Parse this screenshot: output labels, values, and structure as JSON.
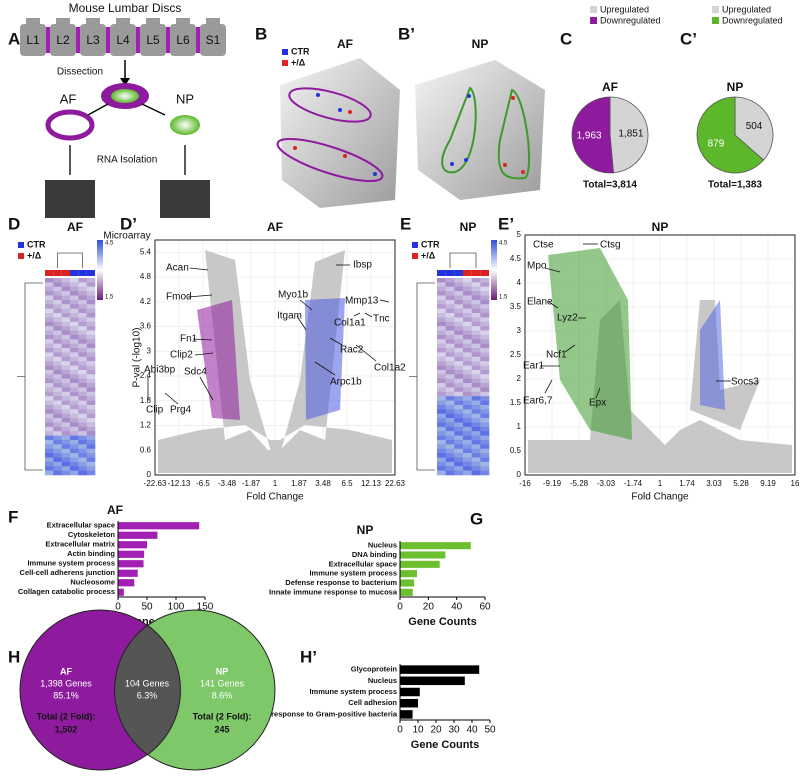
{
  "panel_labels": [
    "A",
    "B",
    "B’",
    "C",
    "C’",
    "D",
    "D’",
    "E",
    "E’",
    "F",
    "G",
    "H",
    "H’"
  ],
  "panel_a": {
    "title": "Mouse Lumbar Discs",
    "discs": [
      "L1",
      "L2",
      "L3",
      "L4",
      "L5",
      "L6",
      "S1"
    ],
    "steps": [
      "Dissection",
      "RNA Isolation"
    ],
    "tissues": [
      "AF",
      "NP"
    ],
    "array": "Microarray"
  },
  "legend_groups": [
    "CTR",
    "+/Δ"
  ],
  "pca": [
    {
      "title": "AF"
    },
    {
      "title": "NP"
    }
  ],
  "heatmaps": [
    {
      "title": "AF",
      "scale": [
        4.5,
        1.5
      ]
    },
    {
      "title": "NP",
      "scale": [
        4.5,
        1.5
      ]
    }
  ],
  "chart_data": [
    {
      "type": "pie",
      "title": "AF",
      "categories": [
        "Upregulated",
        "Downregulated"
      ],
      "values": [
        1851,
        1963
      ],
      "value_labels": [
        "1,851",
        "1,963"
      ],
      "colors": [
        "#d4d4d4",
        "#8e1b9e"
      ],
      "total_label": "Total=3,814"
    },
    {
      "type": "pie",
      "title": "NP",
      "categories": [
        "Upregulated",
        "Downregulated"
      ],
      "values": [
        504,
        879
      ],
      "value_labels": [
        "504",
        "879"
      ],
      "colors": [
        "#d4d4d4",
        "#5cb82a"
      ],
      "total_label": "Total=1,383"
    },
    {
      "type": "volcano",
      "title": "AF",
      "xlabel": "Fold Change",
      "ylabel": "P-val (-log10)",
      "xticks": [
        -22.63,
        -12.13,
        -6.5,
        -3.48,
        -1.87,
        1,
        1.87,
        3.48,
        6.5,
        12.13,
        22.63
      ],
      "ylim": [
        0,
        5.7
      ],
      "yticks": [
        0,
        0.6,
        1.2,
        1.8,
        2.4,
        3,
        3.6,
        4.2,
        4.8,
        5.4
      ],
      "colors": [
        "#8e1b9e",
        "#4a5be0"
      ],
      "annotations": [
        "Acan",
        "Fmod",
        "Fn1",
        "Clip2",
        "Sdc4",
        "Abi3bp",
        "Clip",
        "Prg4",
        "Ibsp",
        "Myo1b",
        "Itgam",
        "Mmp13",
        "Col1a1",
        "Tnc",
        "Rac2",
        "Col1a2",
        "Arpc1b"
      ]
    },
    {
      "type": "volcano",
      "title": "NP",
      "xlabel": "Fold Change",
      "ylabel": null,
      "xticks": [
        -16,
        -9.19,
        -5.28,
        -3.03,
        -1.74,
        1,
        1.74,
        3.03,
        5.28,
        9.19,
        16
      ],
      "ylim": [
        0,
        5
      ],
      "yticks": [
        0,
        0.5,
        1,
        1.5,
        2,
        2.5,
        3,
        3.5,
        4,
        4.5,
        5
      ],
      "colors": [
        "#3d9a2a",
        "#4a5be0"
      ],
      "annotations": [
        "Ctse",
        "Ctsg",
        "Mpo",
        "Elane",
        "Lyz2",
        "Ncf1",
        "Ear1",
        "Ear6,7",
        "Epx",
        "Socs3"
      ]
    },
    {
      "type": "hbar",
      "title": "AF",
      "categories": [
        "Extracellular space",
        "Cytoskeleton",
        "Extracellular matrix",
        "Actin binding",
        "Immune system process",
        "Cell-cell adherens junction",
        "Nucleosome",
        "Collagen catabolic process"
      ],
      "values": [
        140,
        68,
        50,
        45,
        44,
        34,
        28,
        10
      ],
      "color": "#a21fb3",
      "xlabel": "Gene Counts",
      "xlim": [
        0,
        150
      ],
      "xticks": [
        0,
        50,
        100,
        150
      ]
    },
    {
      "type": "hbar",
      "title": "NP",
      "categories": [
        "Nucleus",
        "DNA binding",
        "Extracellular space",
        "Immune system process",
        "Defense response to bacterium",
        "Innate immune response to mucosa"
      ],
      "values": [
        50,
        32,
        28,
        12,
        10,
        9
      ],
      "color": "#6cbf2e",
      "xlabel": "Gene Counts",
      "xlim": [
        0,
        60
      ],
      "xticks": [
        0,
        20,
        40,
        60
      ]
    },
    {
      "type": "hbar",
      "title": null,
      "categories": [
        "Glycoprotein",
        "Nucleus",
        "Immune system process",
        "Cell adhesion",
        "Defense response to Gram-positive bacteria"
      ],
      "values": [
        44,
        36,
        11,
        10,
        7
      ],
      "color": "#000000",
      "xlabel": "Gene Counts",
      "xlim": [
        0,
        50
      ],
      "xticks": [
        0,
        10,
        20,
        30,
        40,
        50
      ]
    }
  ],
  "venn": {
    "sets": [
      {
        "name": "AF",
        "count": "1,398 Genes",
        "percent": "85.1%",
        "total_label": "Total (2 Fold):",
        "total": "1,502"
      },
      {
        "name": "NP",
        "count": "141 Genes",
        "percent": "8.6%",
        "total_label": "Total (2 Fold):",
        "total": "245"
      }
    ],
    "overlap": {
      "count": "104 Genes",
      "percent": "6.3%"
    }
  }
}
